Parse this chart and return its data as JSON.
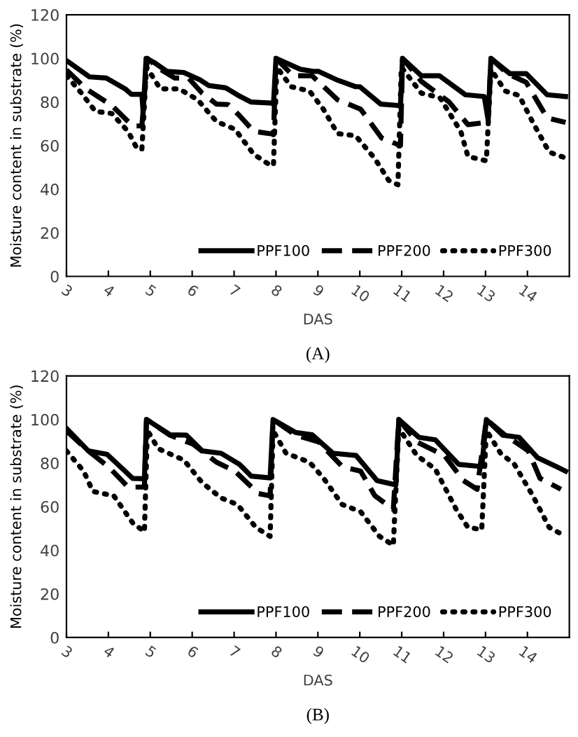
{
  "chart_data": [
    {
      "type": "line",
      "xlabel": "DAS",
      "ylabel": "Moisture content in substrate (%)",
      "xlim": [
        3,
        15
      ],
      "xticks": [
        3,
        4,
        5,
        6,
        7,
        8,
        9,
        10,
        11,
        12,
        13,
        14
      ],
      "ylim": [
        0,
        120
      ],
      "yticks": [
        0,
        20,
        40,
        60,
        80,
        100,
        120
      ],
      "grid": false,
      "legend": "bottom right",
      "annotations": [
        "(A)"
      ],
      "series": [
        {
          "name": "PPF100",
          "color": "#000000",
          "line_style": "solid",
          "x": [
            3.0,
            3.55,
            3.95,
            4.4,
            4.55,
            4.8,
            4.83,
            4.9,
            5.1,
            5.4,
            5.8,
            6.2,
            6.4,
            6.8,
            7.1,
            7.4,
            7.9,
            7.94,
            8.0,
            8.58,
            8.91,
            9.02,
            9.47,
            9.9,
            10.0,
            10.5,
            10.9,
            10.97,
            11.02,
            11.47,
            11.9,
            12.52,
            12.97,
            13.06,
            13.13,
            13.58,
            13.97,
            14.47,
            14.91
          ],
          "values": [
            99,
            91.5,
            91,
            86,
            83.5,
            83.5,
            75,
            100,
            98,
            94,
            93.5,
            90,
            87.5,
            86.5,
            83,
            80,
            79.5,
            79,
            100,
            95,
            94,
            94,
            90,
            87,
            87,
            79,
            78.4,
            78,
            100,
            92,
            92,
            83.3,
            82.5,
            72,
            100,
            93,
            93,
            83.3,
            82.5
          ]
        },
        {
          "name": "PPF200",
          "color": "#000000",
          "line_style": "dashed",
          "x": [
            3.0,
            3.47,
            4.08,
            4.58,
            4.8,
            4.93,
            5.24,
            5.58,
            5.91,
            6.24,
            6.58,
            6.86,
            7.13,
            7.47,
            7.91,
            7.94,
            8.0,
            8.41,
            8.86,
            9.47,
            10.02,
            10.52,
            10.97,
            11.02,
            11.47,
            12.13,
            12.58,
            13.02,
            13.06,
            13.13,
            13.52,
            13.97,
            14.47,
            14.91
          ],
          "values": [
            94.7,
            86,
            78.4,
            69,
            69,
            100,
            95,
            91,
            91,
            84,
            79,
            78.8,
            73.7,
            66.5,
            65.3,
            65,
            100,
            92,
            92,
            81,
            76.7,
            63.5,
            60,
            100,
            89.4,
            80,
            69.6,
            70.6,
            70,
            100,
            93,
            89,
            72.7,
            70.6
          ]
        },
        {
          "name": "PPF300",
          "color": "#000000",
          "line_style": "dotted",
          "x": [
            3.0,
            3.36,
            3.69,
            4.08,
            4.47,
            4.69,
            4.8,
            4.91,
            5.24,
            5.69,
            6.13,
            6.58,
            7.02,
            7.47,
            7.86,
            7.94,
            8.02,
            8.36,
            8.8,
            9.13,
            9.47,
            9.9,
            10.36,
            10.69,
            10.91,
            10.99,
            11.47,
            11.91,
            12.41,
            12.58,
            13.02,
            13.13,
            13.47,
            13.8,
            14.13,
            14.52,
            14.91
          ],
          "values": [
            92,
            84,
            75.7,
            74.7,
            66.5,
            58.4,
            58.4,
            96,
            86,
            86,
            81,
            71,
            67.5,
            56,
            51,
            51,
            96,
            87,
            85,
            76.7,
            65.5,
            64.5,
            54,
            44,
            42,
            96,
            84,
            82,
            66.5,
            55,
            53,
            95,
            85,
            83,
            70.6,
            57,
            54.3
          ]
        }
      ]
    },
    {
      "type": "line",
      "xlabel": "DAS",
      "ylabel": "Moisture content in substrate (%)",
      "xlim": [
        3,
        15
      ],
      "xticks": [
        3,
        4,
        5,
        6,
        7,
        8,
        9,
        10,
        11,
        12,
        13,
        14
      ],
      "ylim": [
        0,
        120
      ],
      "yticks": [
        0,
        20,
        40,
        60,
        80,
        100,
        120
      ],
      "grid": false,
      "legend": "bottom right",
      "annotations": [
        "(B)"
      ],
      "series": [
        {
          "name": "PPF100",
          "color": "#000000",
          "line_style": "solid",
          "x": [
            3.0,
            3.52,
            3.97,
            4.36,
            4.58,
            4.86,
            4.91,
            5.47,
            5.86,
            6.24,
            6.69,
            7.13,
            7.41,
            7.86,
            7.93,
            8.47,
            8.86,
            9.36,
            9.91,
            10.41,
            10.86,
            10.93,
            11.41,
            11.8,
            12.36,
            12.91,
            13.02,
            13.41,
            13.8,
            14.24,
            14.69,
            14.91
          ],
          "values": [
            95.9,
            85.6,
            84,
            77,
            73,
            72.8,
            100,
            93,
            92.8,
            85.6,
            84.5,
            79.4,
            74,
            73.2,
            100,
            94,
            93,
            84.5,
            83.5,
            72,
            70,
            100,
            91.8,
            90.7,
            79.4,
            78.4,
            100,
            92.8,
            91.8,
            82.5,
            78.4,
            76.3
          ]
        },
        {
          "name": "PPF200",
          "color": "#000000",
          "line_style": "dashed",
          "x": [
            3.0,
            3.52,
            4.02,
            4.47,
            4.86,
            4.91,
            5.47,
            6.02,
            6.58,
            7.02,
            7.58,
            7.86,
            7.93,
            8.47,
            9.02,
            9.58,
            10.02,
            10.36,
            10.8,
            10.93,
            11.36,
            12.02,
            12.47,
            12.8,
            13.02,
            13.47,
            14.02,
            14.3,
            14.8
          ],
          "values": [
            94.8,
            85.6,
            78,
            69,
            69,
            100,
            92.8,
            88.7,
            80.4,
            76.3,
            66,
            65,
            100,
            92.8,
            89.7,
            78.4,
            76.3,
            65,
            58.8,
            100,
            89.7,
            83.5,
            72,
            68,
            100,
            92.8,
            85.6,
            73,
            68
          ]
        },
        {
          "name": "PPF300",
          "color": "#000000",
          "line_style": "dotted",
          "x": [
            3.0,
            3.41,
            3.63,
            4.13,
            4.58,
            4.86,
            4.93,
            5.19,
            5.8,
            6.24,
            6.69,
            7.08,
            7.52,
            7.86,
            7.93,
            8.24,
            8.8,
            9.13,
            9.58,
            10.02,
            10.47,
            10.8,
            10.93,
            11.36,
            11.8,
            12.3,
            12.58,
            12.91,
            13.02,
            13.36,
            13.69,
            14.13,
            14.52,
            14.91
          ],
          "values": [
            85.6,
            76.3,
            67,
            65,
            52.6,
            48.5,
            95,
            86.6,
            81.4,
            71,
            64,
            61,
            50.5,
            46.4,
            95,
            84.5,
            80.4,
            73.2,
            61,
            57.7,
            46.4,
            42.3,
            96,
            83.5,
            77.3,
            58.8,
            50.5,
            49.5,
            95,
            84.5,
            79.4,
            65,
            50.5,
            46.4
          ]
        }
      ]
    }
  ]
}
